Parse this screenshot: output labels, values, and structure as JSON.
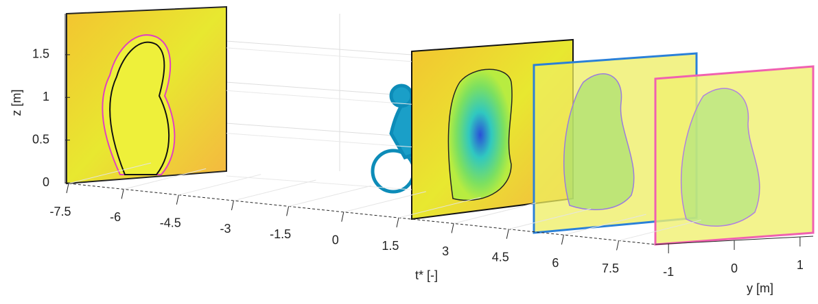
{
  "chart_data": {
    "type": "surface3d",
    "xlabel": "t* [-]",
    "ylabel": "y [m]",
    "zlabel": "z [m]",
    "xlim": [
      -7.5,
      8.5
    ],
    "xticks": [
      -7.5,
      -6,
      -4.5,
      -3,
      -1.5,
      0,
      1.5,
      3,
      4.5,
      6,
      7.5
    ],
    "ylim": [
      -1.2,
      1.2
    ],
    "yticks": [
      -1,
      0,
      1
    ],
    "zlim": [
      0,
      1.9
    ],
    "zticks": [
      0,
      0.5,
      1,
      1.5
    ]
  }
}
